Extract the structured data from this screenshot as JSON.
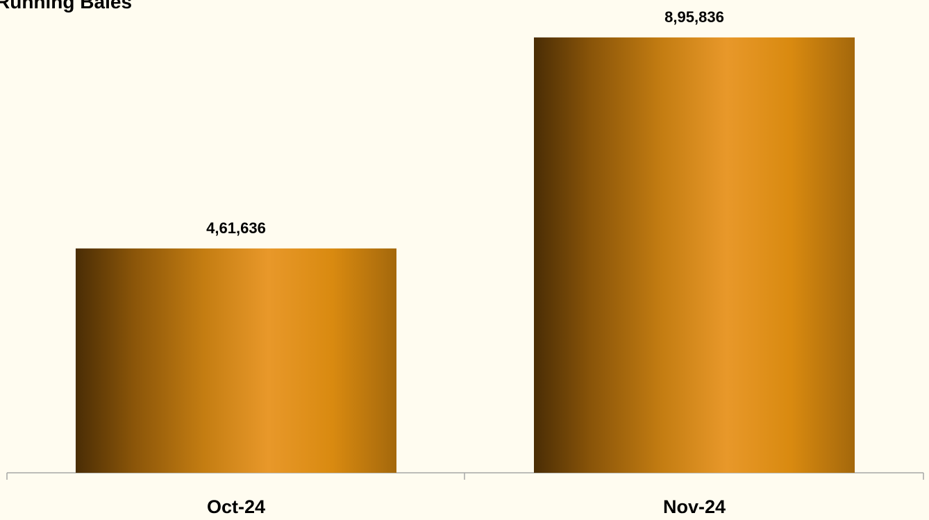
{
  "chart_data": {
    "type": "bar",
    "title": "Running Bales",
    "categories": [
      "Oct-24",
      "Nov-24"
    ],
    "values": [
      461636,
      895836
    ],
    "value_labels": [
      "4,61,636",
      "8,95,836"
    ],
    "color": "#e8982a",
    "ylim": [
      0,
      900000
    ]
  }
}
